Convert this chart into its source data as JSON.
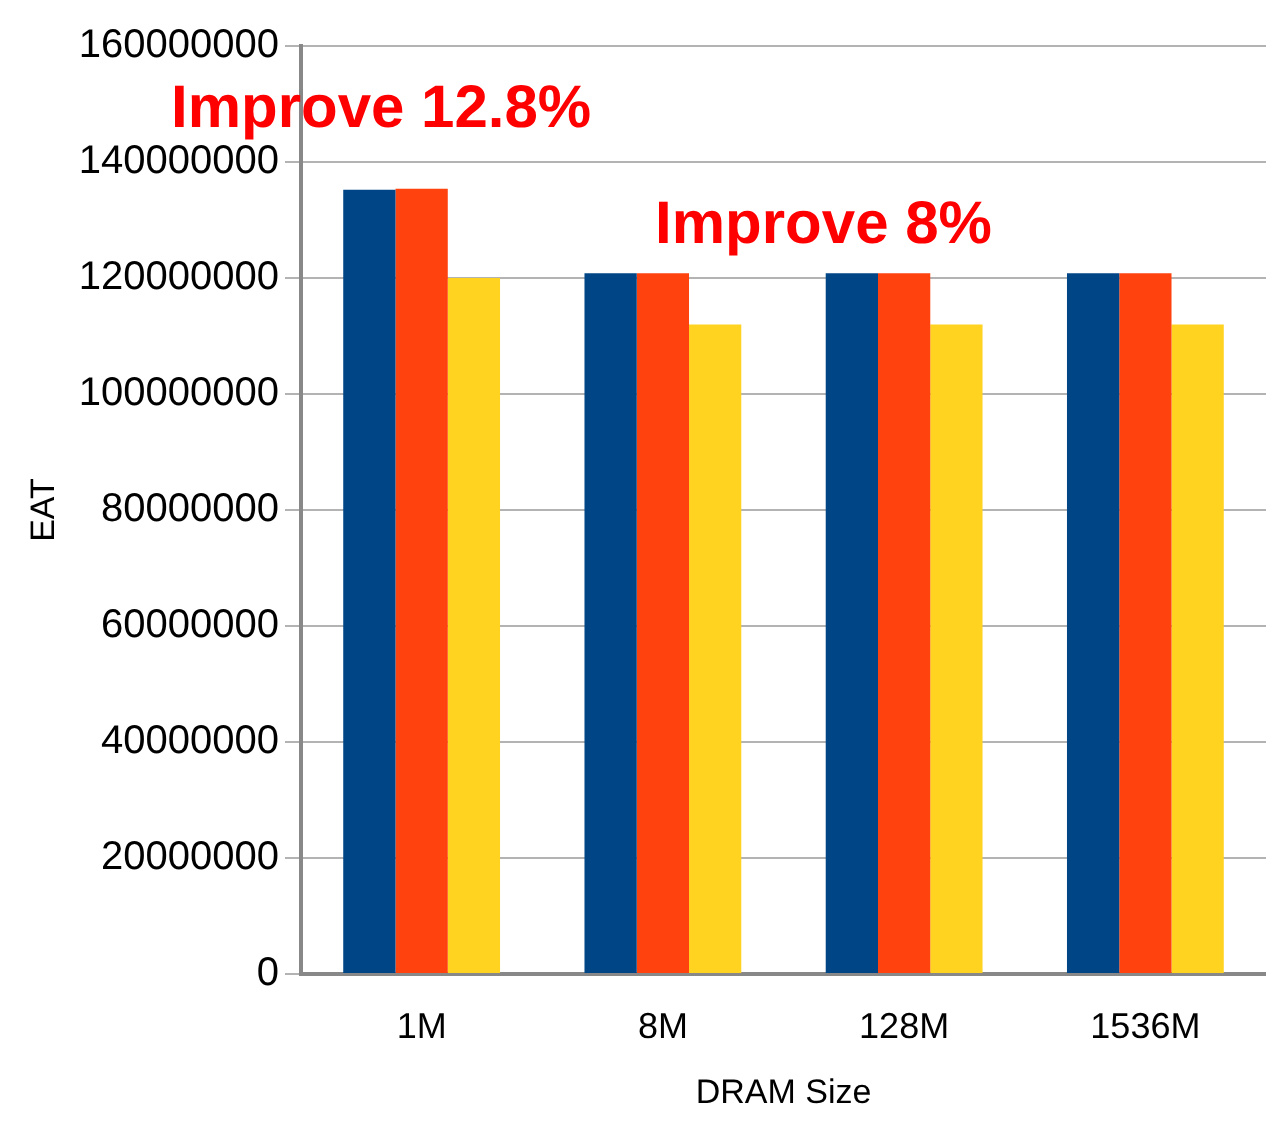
{
  "chart_data": {
    "type": "bar",
    "xlabel": "DRAM Size",
    "ylabel": "EAT",
    "categories": [
      "1M",
      "8M",
      "128M",
      "1536M"
    ],
    "series": [
      {
        "color": "#004586",
        "values": [
          135200000,
          120800000,
          120800000,
          120800000
        ]
      },
      {
        "color": "#ff420e",
        "values": [
          135400000,
          120800000,
          120800000,
          120800000
        ]
      },
      {
        "color": "#ffd320",
        "values": [
          120000000,
          112000000,
          112000000,
          112000000
        ]
      }
    ],
    "ylim": [
      0,
      160000000
    ],
    "yticks": [
      0,
      20000000,
      40000000,
      60000000,
      80000000,
      100000000,
      120000000,
      140000000,
      160000000
    ],
    "grid": "y",
    "legend": false,
    "annotations": [
      "Improve 12.8%",
      "Improve 8%"
    ]
  }
}
